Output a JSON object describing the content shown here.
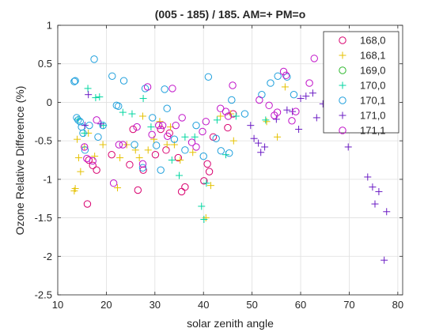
{
  "chart_data": {
    "type": "scatter",
    "title": "(005 - 185) / 185.  AM=+ PM=o",
    "xlabel": "solar zenith angle",
    "ylabel": "Ozone Relative Difference (%)",
    "xlim": [
      10,
      81
    ],
    "ylim": [
      -2.5,
      1
    ],
    "xticks": [
      10,
      20,
      30,
      40,
      50,
      60,
      70,
      80
    ],
    "yticks": [
      -2.5,
      -2,
      -1.5,
      -1,
      -0.5,
      0,
      0.5,
      1
    ],
    "xtick_labels": [
      "10",
      "20",
      "30",
      "40",
      "50",
      "60",
      "70",
      "80"
    ],
    "ytick_labels": [
      "-2.5",
      "-2",
      "-1.5",
      "-1",
      "-0.5",
      "0",
      "0.5",
      "1"
    ],
    "grid": true,
    "legend_position": "top-right",
    "series": [
      {
        "name": "168,0",
        "marker": "circle",
        "color": "#d8006f",
        "points": [
          [
            16.1,
            -1.32
          ],
          [
            16.4,
            -0.75
          ],
          [
            17.2,
            -0.82
          ],
          [
            18.0,
            -0.88
          ],
          [
            21.1,
            -0.68
          ],
          [
            24.8,
            -0.81
          ],
          [
            25.5,
            -0.35
          ],
          [
            26.5,
            -1.14
          ],
          [
            27.6,
            -0.88
          ],
          [
            30.1,
            -0.68
          ],
          [
            31.2,
            -0.35
          ],
          [
            32.3,
            -0.62
          ],
          [
            33.0,
            -0.4
          ],
          [
            34.8,
            -0.72
          ],
          [
            35.5,
            -1.16
          ],
          [
            36.2,
            -1.1
          ],
          [
            40.1,
            -1.02
          ],
          [
            40.8,
            -0.8
          ],
          [
            41.2,
            -0.9
          ],
          [
            42.0,
            -0.45
          ],
          [
            45.0,
            -0.33
          ],
          [
            46.1,
            -0.15
          ]
        ]
      },
      {
        "name": "168,1",
        "marker": "plus",
        "color": "#e5c100",
        "points": [
          [
            13.4,
            -1.15
          ],
          [
            13.6,
            -1.12
          ],
          [
            14.0,
            -0.48
          ],
          [
            14.3,
            -0.72
          ],
          [
            14.7,
            -0.9
          ],
          [
            15.5,
            -0.58
          ],
          [
            16.3,
            -0.4
          ],
          [
            17.6,
            -0.7
          ],
          [
            19.3,
            -0.55
          ],
          [
            22.3,
            -1.11
          ],
          [
            22.8,
            -0.72
          ],
          [
            24.2,
            -0.55
          ],
          [
            26.0,
            -0.62
          ],
          [
            26.8,
            -0.72
          ],
          [
            27.5,
            -0.18
          ],
          [
            28.6,
            -0.62
          ],
          [
            29.8,
            -0.48
          ],
          [
            31.0,
            -0.25
          ],
          [
            32.5,
            -0.55
          ],
          [
            33.2,
            -0.32
          ],
          [
            34.0,
            -0.55
          ],
          [
            35.2,
            -0.75
          ],
          [
            37.8,
            -0.65
          ],
          [
            40.5,
            -1.5
          ],
          [
            41.5,
            -1.08
          ],
          [
            43.5,
            -0.18
          ],
          [
            45.6,
            -0.15
          ],
          [
            46.2,
            -0.5
          ],
          [
            53.0,
            -0.25
          ],
          [
            55.2,
            -0.45
          ],
          [
            56.8,
            0.2
          ]
        ]
      },
      {
        "name": "169,0",
        "marker": "circle",
        "color": "#2eb82e",
        "points": []
      },
      {
        "name": "170,0",
        "marker": "plus",
        "color": "#00d6a0",
        "points": [
          [
            14.2,
            -0.22
          ],
          [
            15.5,
            -0.4
          ],
          [
            16.2,
            0.18
          ],
          [
            17.8,
            0.06
          ],
          [
            18.6,
            0.07
          ],
          [
            19.4,
            -0.3
          ],
          [
            23.4,
            -0.13
          ],
          [
            25.3,
            -0.15
          ],
          [
            27.6,
            0.05
          ],
          [
            29.2,
            -0.32
          ],
          [
            33.5,
            -0.75
          ],
          [
            35.0,
            -0.95
          ],
          [
            36.2,
            -0.45
          ],
          [
            38.2,
            -0.45
          ],
          [
            39.6,
            -1.35
          ],
          [
            40.1,
            -1.52
          ],
          [
            40.6,
            -1.05
          ],
          [
            42.8,
            -0.23
          ],
          [
            44.6,
            -0.68
          ],
          [
            46.7,
            -0.18
          ],
          [
            52.8,
            -0.23
          ]
        ]
      },
      {
        "name": "170,1",
        "marker": "circle",
        "color": "#1e9fdc",
        "points": [
          [
            13.4,
            0.27
          ],
          [
            13.6,
            0.28
          ],
          [
            13.9,
            -0.2
          ],
          [
            14.2,
            -0.23
          ],
          [
            14.6,
            -0.25
          ],
          [
            14.9,
            -0.32
          ],
          [
            15.2,
            -0.4
          ],
          [
            15.6,
            -0.62
          ],
          [
            16.5,
            -0.3
          ],
          [
            17.5,
            0.56
          ],
          [
            18.3,
            -0.45
          ],
          [
            19.3,
            -0.3
          ],
          [
            21.2,
            0.34
          ],
          [
            22.1,
            -0.04
          ],
          [
            22.5,
            -0.05
          ],
          [
            23.6,
            0.28
          ],
          [
            25.8,
            -0.55
          ],
          [
            27.5,
            -0.85
          ],
          [
            28.0,
            0.18
          ],
          [
            29.5,
            -0.2
          ],
          [
            30.3,
            -0.56
          ],
          [
            31.2,
            -0.88
          ],
          [
            32.0,
            0.17
          ],
          [
            32.5,
            -0.08
          ],
          [
            34.0,
            -0.48
          ],
          [
            36.2,
            -0.62
          ],
          [
            38.5,
            -0.3
          ],
          [
            40.0,
            -0.7
          ],
          [
            41.0,
            0.33
          ],
          [
            42.6,
            -0.47
          ],
          [
            43.6,
            -0.63
          ],
          [
            45.3,
            -0.66
          ],
          [
            45.8,
            0.03
          ],
          [
            48.5,
            -0.15
          ],
          [
            52.0,
            0.1
          ],
          [
            53.8,
            0.25
          ],
          [
            55.3,
            0.34
          ],
          [
            57.2,
            0.33
          ],
          [
            58.6,
            0.1
          ]
        ]
      },
      {
        "name": "171,0",
        "marker": "plus",
        "color": "#6a1bc4",
        "points": [
          [
            15.6,
            -0.3
          ],
          [
            16.3,
            0.1
          ],
          [
            18.9,
            -0.28
          ],
          [
            49.7,
            -0.3
          ],
          [
            50.4,
            -0.47
          ],
          [
            51.3,
            -0.53
          ],
          [
            51.8,
            -0.65
          ],
          [
            52.6,
            -0.58
          ],
          [
            55.0,
            -0.22
          ],
          [
            57.2,
            -0.1
          ],
          [
            58.3,
            -0.12
          ],
          [
            59.6,
            -0.35
          ],
          [
            60.0,
            0.05
          ],
          [
            61.1,
            0.08
          ],
          [
            62.5,
            0.12
          ],
          [
            63.3,
            -0.2
          ],
          [
            64.6,
            -0.02
          ],
          [
            65.4,
            -0.02
          ],
          [
            66.8,
            -0.05
          ],
          [
            69.0,
            -0.18
          ],
          [
            69.8,
            -0.58
          ],
          [
            73.8,
            -0.97
          ],
          [
            74.8,
            -1.1
          ],
          [
            75.3,
            -1.32
          ],
          [
            76.1,
            -1.16
          ],
          [
            77.2,
            -2.05
          ],
          [
            77.7,
            -1.42
          ]
        ]
      },
      {
        "name": "171,1",
        "marker": "circle",
        "color": "#c010c8",
        "points": [
          [
            15.5,
            -0.58
          ],
          [
            16.0,
            -0.73
          ],
          [
            17.2,
            -0.76
          ],
          [
            18.0,
            -0.23
          ],
          [
            21.5,
            -1.05
          ],
          [
            22.6,
            -0.55
          ],
          [
            23.4,
            -0.55
          ],
          [
            26.3,
            -0.32
          ],
          [
            27.5,
            -0.8
          ],
          [
            28.5,
            0.2
          ],
          [
            29.4,
            -0.42
          ],
          [
            30.8,
            -0.3
          ],
          [
            31.6,
            -0.3
          ],
          [
            32.6,
            -0.44
          ],
          [
            33.6,
            0.18
          ],
          [
            34.3,
            -0.3
          ],
          [
            35.6,
            -0.2
          ],
          [
            37.6,
            -0.52
          ],
          [
            38.5,
            -0.58
          ],
          [
            39.8,
            -0.38
          ],
          [
            40.5,
            -0.25
          ],
          [
            43.5,
            -0.08
          ],
          [
            44.6,
            -0.12
          ],
          [
            45.1,
            -0.18
          ],
          [
            46.0,
            0.22
          ],
          [
            51.5,
            0.03
          ],
          [
            53.5,
            -0.04
          ],
          [
            54.6,
            -0.17
          ],
          [
            55.2,
            -0.13
          ],
          [
            56.5,
            0.4
          ],
          [
            57.0,
            0.35
          ],
          [
            58.2,
            -0.24
          ],
          [
            59.0,
            -0.12
          ],
          [
            61.8,
            0.25
          ],
          [
            62.8,
            0.57
          ],
          [
            66.2,
            0.05
          ],
          [
            67.5,
            -0.29
          ],
          [
            68.3,
            -0.3
          ],
          [
            69.2,
            0.2
          ],
          [
            70.2,
            0.1
          ],
          [
            70.6,
            0.0
          ]
        ]
      }
    ]
  }
}
